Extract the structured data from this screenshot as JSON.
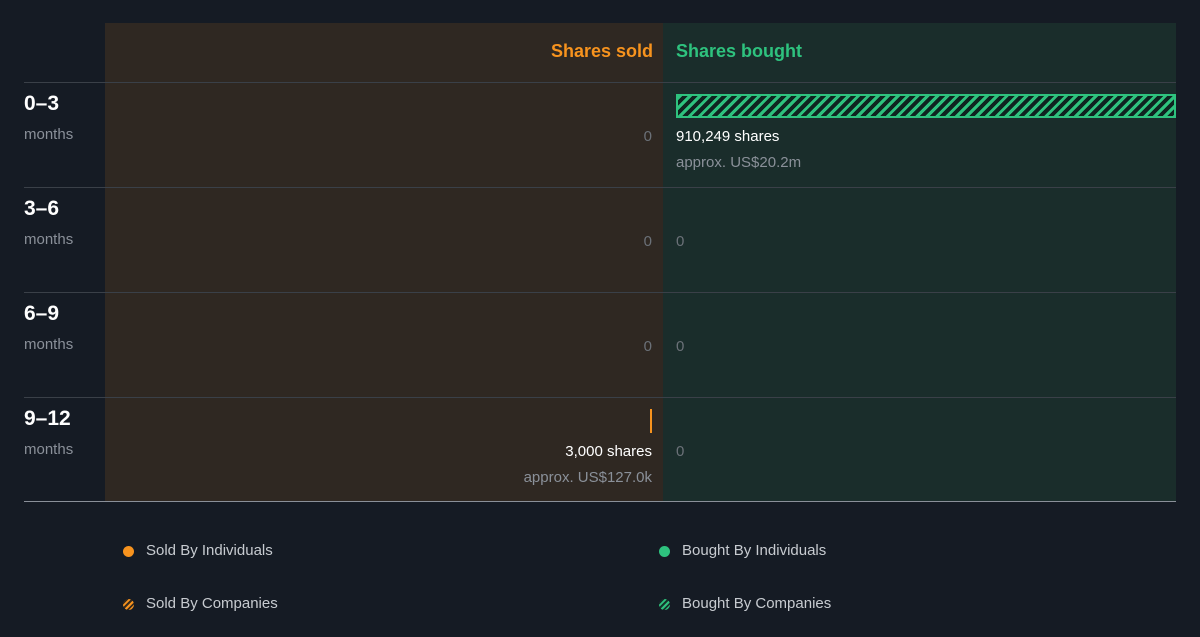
{
  "chart_data": {
    "type": "bar",
    "headers": {
      "sold": "Shares sold",
      "bought": "Shares bought"
    },
    "categories": [
      {
        "period": "0–3",
        "unit": "months"
      },
      {
        "period": "3–6",
        "unit": "months"
      },
      {
        "period": "6–9",
        "unit": "months"
      },
      {
        "period": "9–12",
        "unit": "months"
      }
    ],
    "series": [
      {
        "name": "Shares sold",
        "values": [
          0,
          0,
          0,
          3000
        ],
        "labels": [
          "0",
          "0",
          "0",
          "3,000 shares"
        ],
        "approx": [
          "",
          "",
          "",
          "approx. US$127.0k"
        ],
        "by": [
          "",
          "",
          "",
          "individuals"
        ]
      },
      {
        "name": "Shares bought",
        "values": [
          910249,
          0,
          0,
          0
        ],
        "labels": [
          "910,249 shares",
          "0",
          "0",
          "0"
        ],
        "approx": [
          "approx. US$20.2m",
          "",
          "",
          ""
        ],
        "by": [
          "companies",
          "",
          "",
          ""
        ]
      }
    ],
    "max": 910249,
    "legend": {
      "sold_individuals": "Sold By Individuals",
      "sold_companies": "Sold By Companies",
      "bought_individuals": "Bought By Individuals",
      "bought_companies": "Bought By Companies"
    },
    "colors": {
      "sold": "#f7931e",
      "bought": "#2ec27e",
      "sold_panel": "#2f2822",
      "bought_panel": "#1a2d2b",
      "background": "#151b24"
    }
  }
}
